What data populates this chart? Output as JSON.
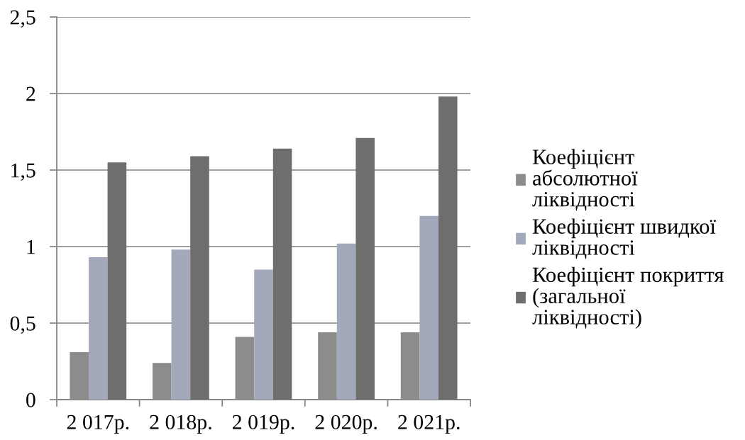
{
  "chart_data": {
    "type": "bar",
    "categories": [
      "2 017р.",
      "2 018р.",
      "2 019р.",
      "2 020р.",
      "2 021р."
    ],
    "series": [
      {
        "name": "Коефіцієнт абсолютної ліквідності",
        "color": "#8c8c8c",
        "values": [
          0.31,
          0.24,
          0.41,
          0.44,
          0.44
        ]
      },
      {
        "name": "Коефіцієнт швидкої ліквідності",
        "color": "#a3a8bb",
        "values": [
          0.93,
          0.98,
          0.85,
          1.02,
          1.2
        ]
      },
      {
        "name": "Коефіцієнт покриття (загальної ліквідності)",
        "color": "#6e6e6e",
        "values": [
          1.55,
          1.59,
          1.64,
          1.71,
          1.98
        ]
      }
    ],
    "ylim": [
      0,
      2.5
    ],
    "yticks": [
      0,
      {
        "value": 0.5,
        "label": "0,5"
      },
      1,
      {
        "value": 1.5,
        "label": "1,5"
      },
      2,
      {
        "value": 2.5,
        "label": "2,5"
      }
    ],
    "grid": "y",
    "legend": "right"
  }
}
